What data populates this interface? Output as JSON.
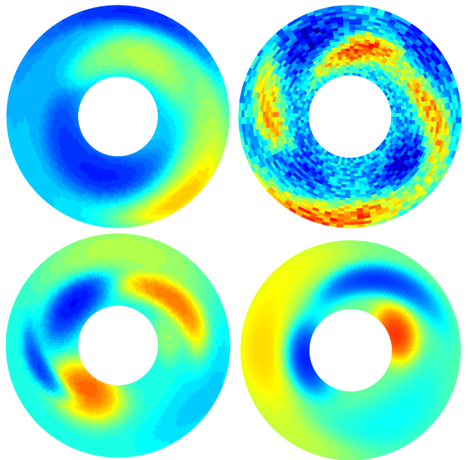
{
  "figure": {
    "panel_count": 4,
    "colormap": "jet",
    "colormap_stops": [
      "#00008f",
      "#0000ff",
      "#00ffff",
      "#ffff00",
      "#ff0000",
      "#800000"
    ],
    "background": "#ffffff",
    "panels": [
      {
        "id": "top-left",
        "style": "contour",
        "base_level": 0.33,
        "features": [
          {
            "kind": "blob",
            "angle_deg": -130,
            "radius_frac": 0.88,
            "spread_deg": 26,
            "width_frac": 0.16,
            "value": 0.83
          },
          {
            "kind": "blob",
            "angle_deg": -155,
            "radius_frac": 0.75,
            "spread_deg": 50,
            "width_frac": 0.26,
            "value": 0.62
          },
          {
            "kind": "blob",
            "angle_deg": 115,
            "radius_frac": 0.35,
            "spread_deg": 40,
            "width_frac": 0.2,
            "value": 0.63
          },
          {
            "kind": "blob",
            "angle_deg": 75,
            "radius_frac": 0.25,
            "spread_deg": 30,
            "width_frac": 0.15,
            "value": 0.52
          },
          {
            "kind": "blob",
            "angle_deg": -75,
            "radius_frac": 0.3,
            "spread_deg": 45,
            "width_frac": 0.25,
            "value": 0.1
          },
          {
            "kind": "blob",
            "angle_deg": -20,
            "radius_frac": 0.22,
            "spread_deg": 40,
            "width_frac": 0.2,
            "value": 0.15
          },
          {
            "kind": "blob",
            "angle_deg": 95,
            "radius_frac": 0.92,
            "spread_deg": 50,
            "width_frac": 0.12,
            "value": 0.1
          },
          {
            "kind": "blob",
            "angle_deg": 35,
            "radius_frac": 0.7,
            "spread_deg": 35,
            "width_frac": 0.25,
            "value": 0.3
          }
        ]
      },
      {
        "id": "top-right",
        "style": "noisy",
        "base_level": 0.32,
        "features": [
          {
            "kind": "spiral",
            "angle_deg": -80,
            "radius_frac": 0.9,
            "spread_deg": 30,
            "width_frac": 0.2,
            "value": 0.92
          },
          {
            "kind": "spiral",
            "angle_deg": 100,
            "radius_frac": 0.4,
            "spread_deg": 25,
            "width_frac": 0.22,
            "value": 0.95
          },
          {
            "kind": "spiral",
            "angle_deg": 0,
            "radius_frac": 0.55,
            "spread_deg": 22,
            "width_frac": 0.25,
            "value": 0.82
          },
          {
            "kind": "spiral",
            "angle_deg": 180,
            "radius_frac": 0.6,
            "spread_deg": 22,
            "width_frac": 0.25,
            "value": 0.85
          },
          {
            "kind": "blob",
            "angle_deg": -140,
            "radius_frac": 0.45,
            "spread_deg": 20,
            "width_frac": 0.2,
            "value": 0.05
          },
          {
            "kind": "blob",
            "angle_deg": -40,
            "radius_frac": 0.35,
            "spread_deg": 20,
            "width_frac": 0.2,
            "value": 0.05
          },
          {
            "kind": "blob",
            "angle_deg": 60,
            "radius_frac": 0.65,
            "spread_deg": 22,
            "width_frac": 0.25,
            "value": 0.05
          },
          {
            "kind": "blob",
            "angle_deg": 140,
            "radius_frac": 0.75,
            "spread_deg": 20,
            "width_frac": 0.2,
            "value": 0.1
          }
        ]
      },
      {
        "id": "bottom-left",
        "style": "contour",
        "base_level": 0.4,
        "features": [
          {
            "kind": "blob",
            "angle_deg": -55,
            "radius_frac": 0.2,
            "spread_deg": 28,
            "width_frac": 0.28,
            "value": 0.9
          },
          {
            "kind": "spiral",
            "angle_deg": 140,
            "radius_frac": 0.45,
            "spread_deg": 30,
            "width_frac": 0.2,
            "value": 0.88
          },
          {
            "kind": "blob",
            "angle_deg": 95,
            "radius_frac": 0.8,
            "spread_deg": 40,
            "width_frac": 0.25,
            "value": 0.6
          },
          {
            "kind": "blob",
            "angle_deg": 45,
            "radius_frac": 0.3,
            "spread_deg": 30,
            "width_frac": 0.2,
            "value": 0.05
          },
          {
            "kind": "spiral",
            "angle_deg": -20,
            "radius_frac": 0.55,
            "spread_deg": 15,
            "width_frac": 0.15,
            "value": 0.1
          },
          {
            "kind": "blob",
            "angle_deg": -150,
            "radius_frac": 0.8,
            "spread_deg": 30,
            "width_frac": 0.25,
            "value": 0.3
          },
          {
            "kind": "blob",
            "angle_deg": 170,
            "radius_frac": 0.15,
            "spread_deg": 20,
            "width_frac": 0.15,
            "value": 0.55
          }
        ]
      },
      {
        "id": "bottom-right",
        "style": "smooth",
        "base_level": 0.48,
        "features": [
          {
            "kind": "blob",
            "angle_deg": 160,
            "radius_frac": 0.1,
            "spread_deg": 25,
            "width_frac": 0.22,
            "value": 0.93
          },
          {
            "kind": "blob",
            "angle_deg": -10,
            "radius_frac": 0.08,
            "spread_deg": 35,
            "width_frac": 0.22,
            "value": 0.05
          },
          {
            "kind": "blob",
            "angle_deg": 0,
            "radius_frac": 0.7,
            "spread_deg": 35,
            "width_frac": 0.3,
            "value": 0.72
          },
          {
            "kind": "spiral",
            "angle_deg": 110,
            "radius_frac": 0.5,
            "spread_deg": 25,
            "width_frac": 0.25,
            "value": 0.08
          },
          {
            "kind": "blob",
            "angle_deg": -120,
            "radius_frac": 0.6,
            "spread_deg": 40,
            "width_frac": 0.3,
            "value": 0.35
          },
          {
            "kind": "blob",
            "angle_deg": -60,
            "radius_frac": 0.85,
            "spread_deg": 30,
            "width_frac": 0.2,
            "value": 0.6
          },
          {
            "kind": "blob",
            "angle_deg": 50,
            "radius_frac": 0.85,
            "spread_deg": 30,
            "width_frac": 0.25,
            "value": 0.65
          }
        ]
      }
    ]
  }
}
